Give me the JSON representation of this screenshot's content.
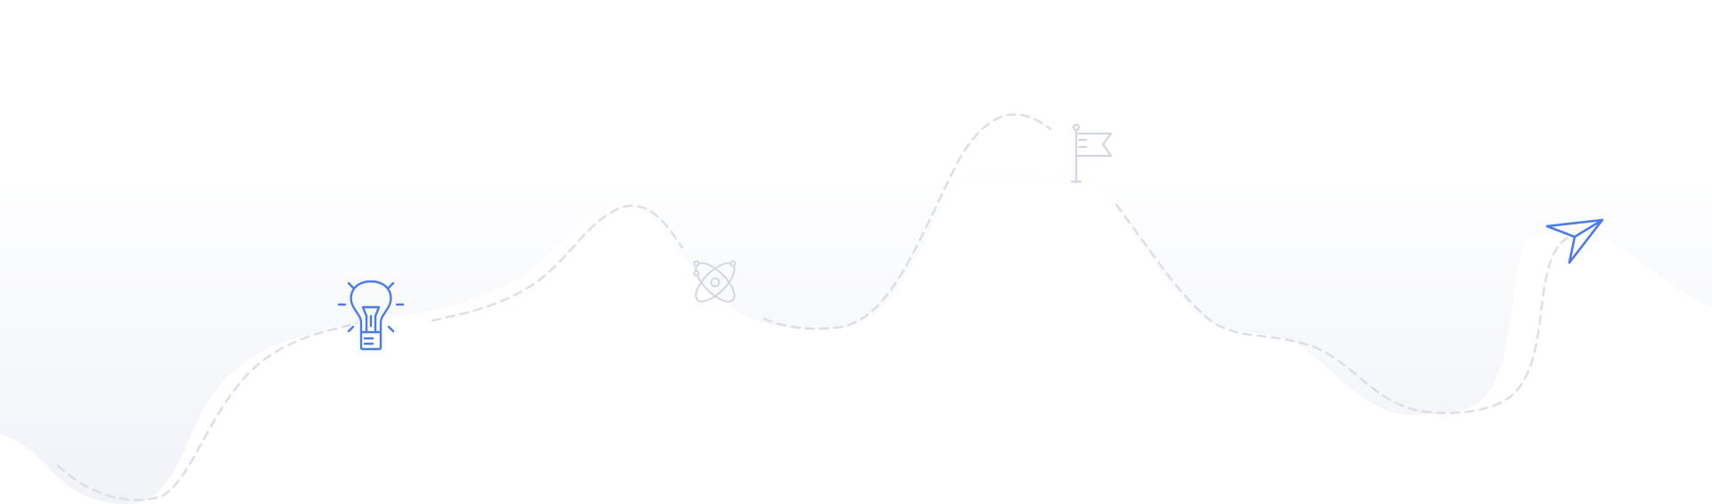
{
  "palette": {
    "background": "#ffffff",
    "hill_fill_top": "#ffffff",
    "hill_fill_bottom": "#f1f3f8",
    "dashed_path": "#dcdfe8",
    "active_icon": "#4a7be6",
    "inactive_icon": "#d3d6e0"
  },
  "journey": {
    "milestones": [
      {
        "icon": "lightbulb-icon",
        "state": "active"
      },
      {
        "icon": "atom-icon",
        "state": "inactive"
      },
      {
        "icon": "flag-icon",
        "state": "inactive"
      },
      {
        "icon": "paper-plane-icon",
        "state": "active"
      }
    ]
  }
}
